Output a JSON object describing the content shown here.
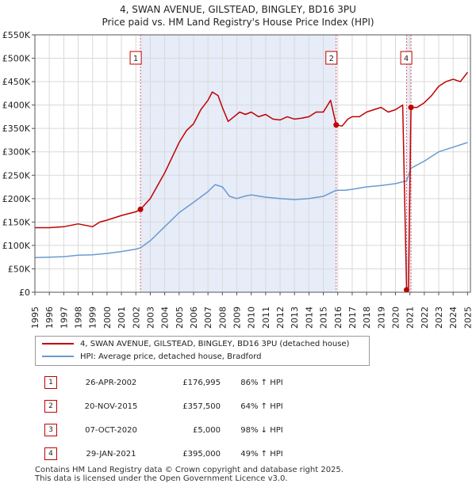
{
  "chart_data": {
    "type": "line",
    "title": "4, SWAN AVENUE, GILSTEAD, BINGLEY, BD16 3PU",
    "subtitle": "Price paid vs. HM Land Registry's House Price Index (HPI)",
    "xlim": [
      1995,
      2025.2
    ],
    "ylim": [
      0,
      550000
    ],
    "x_ticks": [
      1995,
      1996,
      1997,
      1998,
      1999,
      2000,
      2001,
      2002,
      2003,
      2004,
      2005,
      2006,
      2007,
      2008,
      2009,
      2010,
      2011,
      2012,
      2013,
      2014,
      2015,
      2016,
      2017,
      2018,
      2019,
      2020,
      2021,
      2022,
      2023,
      2024,
      2025
    ],
    "y_ticks": [
      0,
      50000,
      100000,
      150000,
      200000,
      250000,
      300000,
      350000,
      400000,
      450000,
      500000,
      550000
    ],
    "y_tick_labels": [
      "£0",
      "£50K",
      "£100K",
      "£150K",
      "£200K",
      "£250K",
      "£300K",
      "£350K",
      "£400K",
      "£450K",
      "£500K",
      "£550K"
    ],
    "shaded_periods": [
      [
        2002.32,
        2015.89
      ],
      [
        2020.77,
        2021.08
      ]
    ],
    "series": [
      {
        "name": "4, SWAN AVENUE, GILSTEAD, BINGLEY, BD16 3PU (detached house)",
        "color": "#c00000",
        "points": [
          [
            1995,
            138000
          ],
          [
            1996,
            138000
          ],
          [
            1997,
            140000
          ],
          [
            1998,
            146000
          ],
          [
            1999,
            140000
          ],
          [
            1999.5,
            150000
          ],
          [
            2000,
            154000
          ],
          [
            2001,
            164000
          ],
          [
            2002,
            172000
          ],
          [
            2002.32,
            176995
          ],
          [
            2003,
            200000
          ],
          [
            2004,
            255000
          ],
          [
            2005,
            320000
          ],
          [
            2005.5,
            345000
          ],
          [
            2006,
            360000
          ],
          [
            2006.5,
            390000
          ],
          [
            2007,
            410000
          ],
          [
            2007.3,
            428000
          ],
          [
            2007.7,
            420000
          ],
          [
            2008,
            395000
          ],
          [
            2008.4,
            365000
          ],
          [
            2008.8,
            375000
          ],
          [
            2009.2,
            385000
          ],
          [
            2009.6,
            380000
          ],
          [
            2010,
            385000
          ],
          [
            2010.5,
            375000
          ],
          [
            2011,
            380000
          ],
          [
            2011.5,
            370000
          ],
          [
            2012,
            368000
          ],
          [
            2012.5,
            375000
          ],
          [
            2013,
            370000
          ],
          [
            2013.5,
            372000
          ],
          [
            2014,
            375000
          ],
          [
            2014.5,
            385000
          ],
          [
            2015,
            385000
          ],
          [
            2015.5,
            410000
          ],
          [
            2015.89,
            357500
          ],
          [
            2016.3,
            355000
          ],
          [
            2016.7,
            370000
          ],
          [
            2017,
            375000
          ],
          [
            2017.5,
            375000
          ],
          [
            2018,
            385000
          ],
          [
            2018.5,
            390000
          ],
          [
            2019,
            395000
          ],
          [
            2019.5,
            385000
          ],
          [
            2020,
            390000
          ],
          [
            2020.5,
            400000
          ],
          [
            2020.77,
            5000
          ],
          [
            2020.9,
            5000
          ],
          [
            2021.08,
            395000
          ],
          [
            2021.5,
            395000
          ],
          [
            2022,
            405000
          ],
          [
            2022.5,
            420000
          ],
          [
            2023,
            440000
          ],
          [
            2023.5,
            450000
          ],
          [
            2024,
            455000
          ],
          [
            2024.5,
            450000
          ],
          [
            2025,
            470000
          ]
        ]
      },
      {
        "name": "HPI: Average price, detached house, Bradford",
        "color": "#6a9ad0",
        "points": [
          [
            1995,
            74000
          ],
          [
            1996,
            75000
          ],
          [
            1997,
            76000
          ],
          [
            1998,
            79000
          ],
          [
            1999,
            80000
          ],
          [
            2000,
            83000
          ],
          [
            2001,
            87000
          ],
          [
            2002,
            92000
          ],
          [
            2002.32,
            95000
          ],
          [
            2003,
            110000
          ],
          [
            2004,
            140000
          ],
          [
            2005,
            170000
          ],
          [
            2006,
            192000
          ],
          [
            2007,
            215000
          ],
          [
            2007.5,
            230000
          ],
          [
            2008,
            225000
          ],
          [
            2008.5,
            205000
          ],
          [
            2009,
            200000
          ],
          [
            2009.5,
            205000
          ],
          [
            2010,
            208000
          ],
          [
            2011,
            203000
          ],
          [
            2012,
            200000
          ],
          [
            2013,
            198000
          ],
          [
            2014,
            200000
          ],
          [
            2015,
            205000
          ],
          [
            2015.89,
            218000
          ],
          [
            2016.5,
            218000
          ],
          [
            2017,
            220000
          ],
          [
            2018,
            225000
          ],
          [
            2019,
            228000
          ],
          [
            2020,
            232000
          ],
          [
            2020.77,
            238000
          ],
          [
            2021.08,
            265000
          ],
          [
            2022,
            280000
          ],
          [
            2023,
            300000
          ],
          [
            2024,
            310000
          ],
          [
            2024.5,
            315000
          ],
          [
            2025,
            320000
          ]
        ]
      }
    ],
    "sale_markers": [
      {
        "num": "1",
        "x": 2002.32,
        "y": 176995
      },
      {
        "num": "2",
        "x": 2015.89,
        "y": 357500
      },
      {
        "num": "3",
        "x": 2020.77,
        "y": 5000
      },
      {
        "num": "4",
        "x": 2021.08,
        "y": 395000
      }
    ],
    "sale_labels_on_chart": [
      "1",
      "2",
      "4"
    ]
  },
  "legend": {
    "property_label": "4, SWAN AVENUE, GILSTEAD, BINGLEY, BD16 3PU (detached house)",
    "hpi_label": "HPI: Average price, detached house, Bradford"
  },
  "transactions": [
    {
      "num": "1",
      "date": "26-APR-2002",
      "price": "£176,995",
      "hpi": "86% ↑ HPI"
    },
    {
      "num": "2",
      "date": "20-NOV-2015",
      "price": "£357,500",
      "hpi": "64% ↑ HPI"
    },
    {
      "num": "3",
      "date": "07-OCT-2020",
      "price": "£5,000",
      "hpi": "98% ↓ HPI"
    },
    {
      "num": "4",
      "date": "29-JAN-2021",
      "price": "£395,000",
      "hpi": "49% ↑ HPI"
    }
  ],
  "footer": {
    "line1": "Contains HM Land Registry data © Crown copyright and database right 2025.",
    "line2": "This data is licensed under the Open Government Licence v3.0."
  },
  "colors": {
    "property": "#c00000",
    "hpi": "#6a9ad0",
    "shade": "#e6ecf8",
    "grid": "#d9d9d9"
  }
}
